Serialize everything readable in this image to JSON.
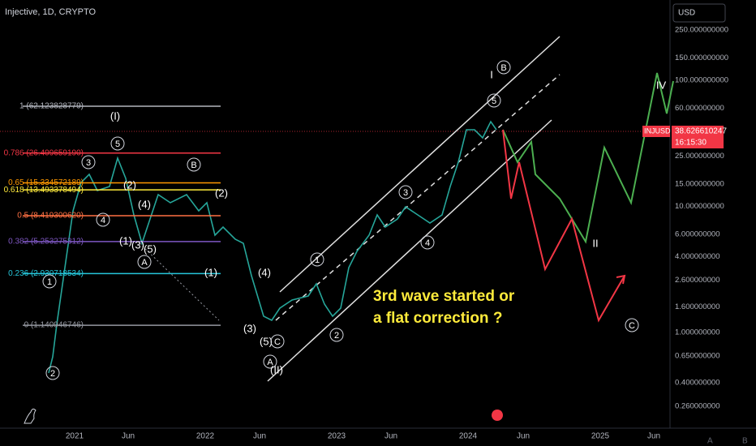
{
  "header": {
    "title": "Injective, 1D, CRYPTO",
    "currency": "USD"
  },
  "price_axis": {
    "log": true,
    "ticks": [
      {
        "value": 250,
        "label": "250.000000000"
      },
      {
        "value": 150,
        "label": "150.000000000"
      },
      {
        "value": 100,
        "label": "100.000000000"
      },
      {
        "value": 60,
        "label": "60.000000000"
      },
      {
        "value": 25,
        "label": "25.000000000"
      },
      {
        "value": 15,
        "label": "15.000000000"
      },
      {
        "value": 10,
        "label": "10.000000000"
      },
      {
        "value": 6,
        "label": "6.000000000"
      },
      {
        "value": 4,
        "label": "4.000000000"
      },
      {
        "value": 2.6,
        "label": "2.600000000"
      },
      {
        "value": 1.6,
        "label": "1.600000000"
      },
      {
        "value": 1,
        "label": "1.000000000"
      },
      {
        "value": 0.65,
        "label": "0.650000000"
      },
      {
        "value": 0.4,
        "label": "0.400000000"
      },
      {
        "value": 0.26,
        "label": "0.260000000"
      }
    ]
  },
  "time_axis": {
    "labels": [
      "2021",
      "Jun",
      "2022",
      "Jun",
      "2023",
      "Jun",
      "2024",
      "Jun",
      "2025",
      "Jun"
    ]
  },
  "last_price": {
    "symbol": "INJUSD",
    "value": {
      "value": 38.626610247,
      "label": "38.626610247"
    },
    "countdown": "16:15:30"
  },
  "fib_levels": [
    {
      "value": 62.123828779,
      "label": "1 (62.123828779)",
      "color": "#b2b5be"
    },
    {
      "value": 26.40965919,
      "label": "0.786 (26.409659190)",
      "color": "#f23645"
    },
    {
      "value": 15.334572189,
      "label": "0.65 (15.334572189)",
      "color": "#ff9800"
    },
    {
      "value": 13.493378494,
      "label": "0.618 (13.493378494)",
      "color": "#ffeb3b"
    },
    {
      "value": 8.41930062,
      "label": "0.5 (8.419300620)",
      "color": "#ff7043"
    },
    {
      "value": 5.253275312,
      "label": "0.382 (5.253275312)",
      "color": "#7e57c2"
    },
    {
      "value": 2.930718534,
      "label": "0.236 (2.930718534)",
      "color": "#26c6da"
    },
    {
      "value": 1.140946746,
      "label": "0 (1.140946746)",
      "color": "#9598a1"
    }
  ],
  "wave_labels": [
    "2",
    "1",
    "3",
    "4",
    "5",
    "(I)",
    "(2)",
    "(4)",
    "(1)",
    "(3)",
    "(5)",
    "A",
    "B",
    "(2)",
    "(1)",
    "(4)",
    "(3)",
    "(5)",
    "C",
    "A",
    "(II)",
    "1",
    "2",
    "3",
    "4",
    "5",
    "I",
    "B",
    "IV",
    "II",
    "C"
  ],
  "annotation": [
    "3rd wave started or",
    "a flat correction ?"
  ],
  "footer": {
    "left": "A",
    "right": "B"
  }
}
